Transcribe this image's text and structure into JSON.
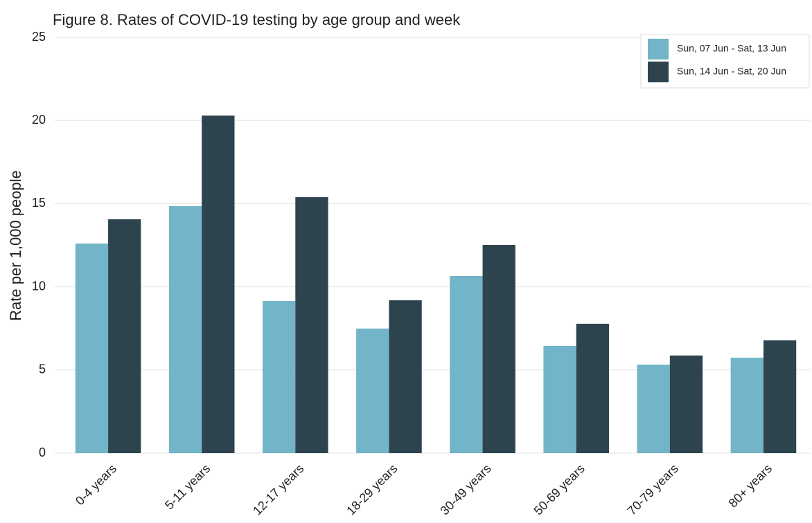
{
  "chart_data": {
    "type": "bar",
    "title": "Figure 8. Rates of COVID-19 testing by age group and week",
    "y_label": "Rate per 1,000 people",
    "categories": [
      "0-4 years",
      "5-11 years",
      "12-17 years",
      "18-29 years",
      "30-49 years",
      "50-69 years",
      "70-79 years",
      "80+ years"
    ],
    "series": [
      {
        "name": "Sun, 07 Jun - Sat, 13 Jun",
        "color": "#72b4c8",
        "values": [
          12.6,
          14.85,
          9.15,
          7.49,
          10.65,
          6.45,
          5.32,
          5.74
        ]
      },
      {
        "name": "Sun, 14 Jun - Sat, 20 Jun",
        "color": "#2d444f",
        "values": [
          14.06,
          20.3,
          15.39,
          9.19,
          12.52,
          7.78,
          5.87,
          6.78
        ]
      }
    ],
    "ylim": [
      0,
      25
    ],
    "yticks": [
      0,
      5,
      10,
      15,
      20,
      25
    ],
    "grid": true,
    "legend": "top-right"
  }
}
